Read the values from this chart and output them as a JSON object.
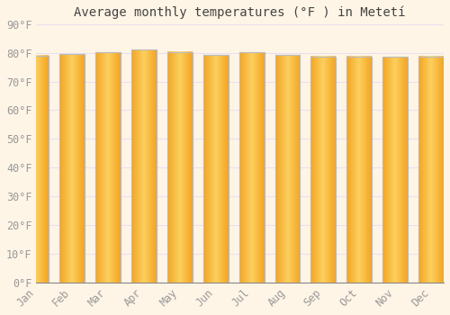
{
  "title": "Average monthly temperatures (°F ) in Metetí",
  "months": [
    "Jan",
    "Feb",
    "Mar",
    "Apr",
    "May",
    "Jun",
    "Jul",
    "Aug",
    "Sep",
    "Oct",
    "Nov",
    "Dec"
  ],
  "values": [
    79.0,
    79.5,
    80.2,
    81.1,
    80.3,
    79.2,
    80.1,
    79.3,
    78.8,
    78.7,
    78.5,
    78.7
  ],
  "bar_color_center": "#FFD966",
  "bar_color_edge": "#F5A623",
  "bar_border_color": "#BBBBBB",
  "background_color": "#FFF5E6",
  "grid_color": "#E8E0F0",
  "ylim": [
    0,
    90
  ],
  "yticks": [
    0,
    10,
    20,
    30,
    40,
    50,
    60,
    70,
    80,
    90
  ],
  "ytick_labels": [
    "0°F",
    "10°F",
    "20°F",
    "30°F",
    "40°F",
    "50°F",
    "60°F",
    "70°F",
    "80°F",
    "90°F"
  ],
  "title_fontsize": 10,
  "tick_fontsize": 8.5,
  "bar_width": 0.7
}
